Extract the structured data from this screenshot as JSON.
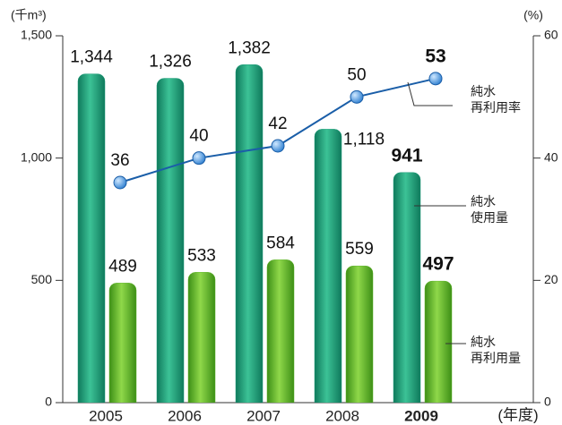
{
  "chart_data": {
    "type": "bar",
    "categories": [
      "2005",
      "2006",
      "2007",
      "2008",
      "2009"
    ],
    "highlight": "2009",
    "y_label": "(千m³)",
    "y2_label": "(%)",
    "x_label": "(年度)",
    "ylim": [
      0,
      1500
    ],
    "yticks": [
      0,
      500,
      {
        "value": 1000,
        "label": "1,000"
      },
      {
        "value": 1500,
        "label": "1,500"
      }
    ],
    "y2lim": [
      0,
      60
    ],
    "y2ticks": [
      0,
      20,
      40,
      60
    ],
    "series": [
      {
        "name": "純水使用量",
        "type": "bar",
        "color": "#1f9e7a",
        "values": [
          1344,
          1326,
          1382,
          1118,
          941
        ],
        "value_labels": [
          "1,344",
          "1,326",
          "1,382",
          "1,118",
          "941"
        ]
      },
      {
        "name": "純水再利用量",
        "type": "bar",
        "color": "#5fb52a",
        "values": [
          489,
          533,
          584,
          559,
          497
        ]
      },
      {
        "name": "純水再利用率",
        "type": "line",
        "axis": "y2",
        "color": "#1a5ea8",
        "values": [
          36,
          40,
          42,
          50,
          53
        ]
      }
    ]
  }
}
